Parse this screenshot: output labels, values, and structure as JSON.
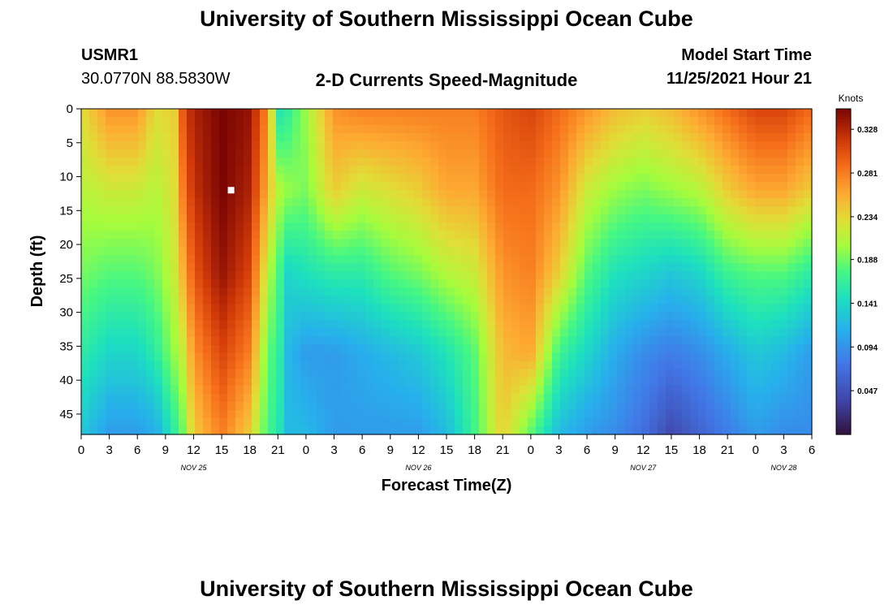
{
  "titles": {
    "main": "University of Southern Mississippi Ocean Cube",
    "station_id": "USMR1",
    "coords": "30.0770N  88.5830W",
    "plot_title": "2-D Currents Speed-Magnitude",
    "model_start_label": "Model Start Time",
    "model_start_value": "11/25/2021 Hour 21",
    "repeat_title": "University of Southern Mississippi Ocean Cube"
  },
  "colors": {
    "background": "#ffffff",
    "axis": "#000000",
    "marker": "#ffffff"
  },
  "chart_data": {
    "type": "heatmap",
    "title": "2-D Currents Speed-Magnitude",
    "xlabel": "Forecast Time(Z)",
    "ylabel": "Depth (ft)",
    "x_ticks": [
      "0",
      "3",
      "6",
      "9",
      "12",
      "15",
      "18",
      "21",
      "0",
      "3",
      "6",
      "9",
      "12",
      "15",
      "18",
      "21",
      "0",
      "3",
      "6",
      "9",
      "12",
      "15",
      "18",
      "21",
      "0",
      "3",
      "6"
    ],
    "x_range_hours": [
      0,
      78
    ],
    "date_labels": [
      {
        "label": "NOV 25",
        "hour": 12
      },
      {
        "label": "NOV 26",
        "hour": 36
      },
      {
        "label": "NOV 27",
        "hour": 60
      },
      {
        "label": "NOV 28",
        "hour": 75
      }
    ],
    "y_ticks": [
      0,
      5,
      10,
      15,
      20,
      25,
      30,
      35,
      40,
      45
    ],
    "y_range_ft": [
      0,
      48
    ],
    "colorbar": {
      "label": "Knots",
      "ticks": [
        "0.328",
        "0.281",
        "0.234",
        "0.188",
        "0.141",
        "0.094",
        "0.047"
      ],
      "range": [
        0.0,
        0.35
      ]
    },
    "profiles": [
      {
        "hour": 0,
        "speeds_knots": [
          0.23,
          0.21,
          0.19,
          0.16,
          0.13
        ]
      },
      {
        "hour": 3,
        "speeds_knots": [
          0.27,
          0.22,
          0.18,
          0.14,
          0.1
        ]
      },
      {
        "hour": 6,
        "speeds_knots": [
          0.27,
          0.22,
          0.18,
          0.14,
          0.1
        ]
      },
      {
        "hour": 8,
        "speeds_knots": [
          0.23,
          0.21,
          0.19,
          0.16,
          0.11
        ]
      },
      {
        "hour": 10,
        "speeds_knots": [
          0.24,
          0.23,
          0.22,
          0.2,
          0.16
        ]
      },
      {
        "hour": 11,
        "speeds_knots": [
          0.31,
          0.29,
          0.26,
          0.22,
          0.19
        ]
      },
      {
        "hour": 12,
        "speeds_knots": [
          0.33,
          0.32,
          0.3,
          0.27,
          0.24
        ]
      },
      {
        "hour": 15,
        "speeds_knots": [
          0.35,
          0.35,
          0.34,
          0.31,
          0.28
        ]
      },
      {
        "hour": 18,
        "speeds_knots": [
          0.34,
          0.33,
          0.31,
          0.28,
          0.24
        ]
      },
      {
        "hour": 20,
        "speeds_knots": [
          0.27,
          0.25,
          0.21,
          0.18,
          0.17
        ]
      },
      {
        "hour": 21,
        "speeds_knots": [
          0.15,
          0.21,
          0.18,
          0.17,
          0.16
        ]
      },
      {
        "hour": 22,
        "speeds_knots": [
          0.16,
          0.2,
          0.14,
          0.12,
          0.12
        ]
      },
      {
        "hour": 24,
        "speeds_knots": [
          0.2,
          0.19,
          0.15,
          0.1,
          0.12
        ]
      },
      {
        "hour": 27,
        "speeds_knots": [
          0.27,
          0.24,
          0.16,
          0.1,
          0.1
        ]
      },
      {
        "hour": 30,
        "speeds_knots": [
          0.28,
          0.22,
          0.16,
          0.11,
          0.1
        ]
      },
      {
        "hour": 33,
        "speeds_knots": [
          0.28,
          0.23,
          0.18,
          0.12,
          0.1
        ]
      },
      {
        "hour": 36,
        "speeds_knots": [
          0.28,
          0.24,
          0.19,
          0.13,
          0.1
        ]
      },
      {
        "hour": 39,
        "speeds_knots": [
          0.28,
          0.26,
          0.21,
          0.15,
          0.12
        ]
      },
      {
        "hour": 42,
        "speeds_knots": [
          0.28,
          0.26,
          0.22,
          0.18,
          0.17
        ]
      },
      {
        "hour": 45,
        "speeds_knots": [
          0.3,
          0.29,
          0.27,
          0.25,
          0.24
        ]
      },
      {
        "hour": 48,
        "speeds_knots": [
          0.31,
          0.29,
          0.28,
          0.26,
          0.18
        ]
      },
      {
        "hour": 51,
        "speeds_knots": [
          0.29,
          0.27,
          0.24,
          0.17,
          0.12
        ]
      },
      {
        "hour": 54,
        "speeds_knots": [
          0.27,
          0.22,
          0.18,
          0.14,
          0.1
        ]
      },
      {
        "hour": 57,
        "speeds_knots": [
          0.25,
          0.2,
          0.15,
          0.11,
          0.09
        ]
      },
      {
        "hour": 60,
        "speeds_knots": [
          0.24,
          0.19,
          0.14,
          0.09,
          0.07
        ]
      },
      {
        "hour": 63,
        "speeds_knots": [
          0.25,
          0.2,
          0.13,
          0.08,
          0.04
        ]
      },
      {
        "hour": 66,
        "speeds_knots": [
          0.27,
          0.21,
          0.14,
          0.09,
          0.06
        ]
      },
      {
        "hour": 69,
        "speeds_knots": [
          0.29,
          0.24,
          0.17,
          0.11,
          0.08
        ]
      },
      {
        "hour": 72,
        "speeds_knots": [
          0.31,
          0.26,
          0.18,
          0.13,
          0.1
        ]
      },
      {
        "hour": 75,
        "speeds_knots": [
          0.31,
          0.26,
          0.18,
          0.12,
          0.09
        ]
      },
      {
        "hour": 78,
        "speeds_knots": [
          0.29,
          0.24,
          0.16,
          0.1,
          0.09
        ]
      }
    ],
    "profile_depths_ft": [
      0,
      12,
      24,
      36,
      48
    ],
    "marker": {
      "hour": 16,
      "depth_ft": 12
    }
  }
}
